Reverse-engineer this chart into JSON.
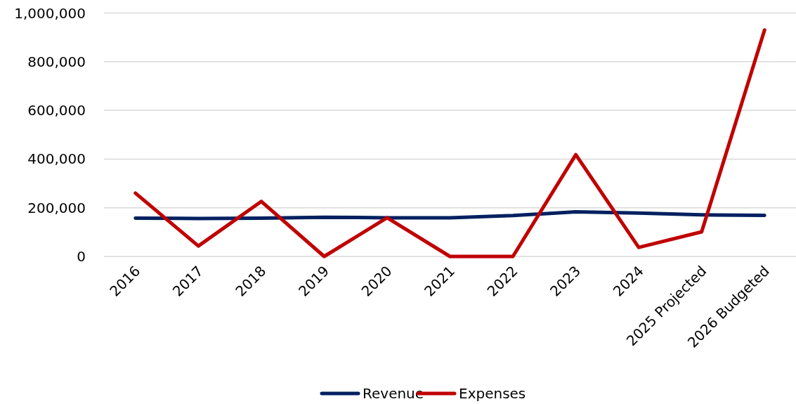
{
  "chart_data": {
    "type": "line",
    "categories": [
      "2016",
      "2017",
      "2018",
      "2019",
      "2020",
      "2021",
      "2022",
      "2023",
      "2024",
      "2025 Projected",
      "2026 Budgeted"
    ],
    "series": [
      {
        "name": "Revenue",
        "color": "#002060",
        "values": [
          157000,
          156000,
          157000,
          161000,
          159000,
          159000,
          168000,
          183000,
          178000,
          171000,
          169000
        ]
      },
      {
        "name": "Expenses",
        "color": "#c00000",
        "values": [
          260000,
          43000,
          226000,
          0,
          159000,
          0,
          0,
          418000,
          37000,
          101000,
          930000
        ]
      }
    ],
    "ylim": [
      0,
      1000000
    ],
    "yticks": [
      {
        "value": 0,
        "label": "0"
      },
      {
        "value": 200000,
        "label": "200,000"
      },
      {
        "value": 400000,
        "label": "400,000"
      },
      {
        "value": 600000,
        "label": "600,000"
      },
      {
        "value": 800000,
        "label": "800,000"
      },
      {
        "value": 1000000,
        "label": "1,000,000"
      }
    ],
    "grid": "y",
    "legend": "bottom",
    "marker": "none",
    "line_style": "solid"
  }
}
